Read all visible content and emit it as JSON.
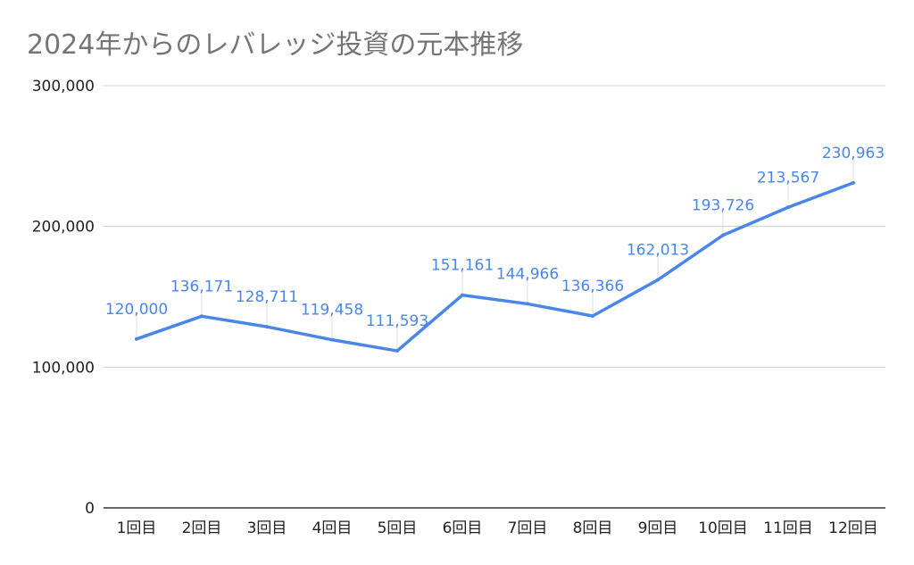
{
  "chart_data": {
    "type": "line",
    "title": "2024年からのレバレッジ投資の元本推移",
    "categories": [
      "1回目",
      "2回目",
      "3回目",
      "4回目",
      "5回目",
      "6回目",
      "7回目",
      "8回目",
      "9回目",
      "10回目",
      "11回目",
      "12回目"
    ],
    "series": [
      {
        "values": [
          120000,
          136171,
          128711,
          119458,
          111593,
          151161,
          144966,
          136366,
          162013,
          193726,
          213567,
          230963
        ],
        "labels": [
          "120,000",
          "136,171",
          "128,711",
          "119,458",
          "111,593",
          "151,161",
          "144,966",
          "136,366",
          "162,013",
          "193,726",
          "213,567",
          "230,963"
        ],
        "color": "#4a86e8"
      }
    ],
    "y_ticks": [
      {
        "value": 0,
        "label": "0"
      },
      {
        "value": 100000,
        "label": "100,000"
      },
      {
        "value": 200000,
        "label": "200,000"
      },
      {
        "value": 300000,
        "label": "300,000"
      }
    ],
    "ylim": [
      0,
      300000
    ],
    "grid": true,
    "legend": "none",
    "xlabel": "",
    "ylabel": ""
  }
}
